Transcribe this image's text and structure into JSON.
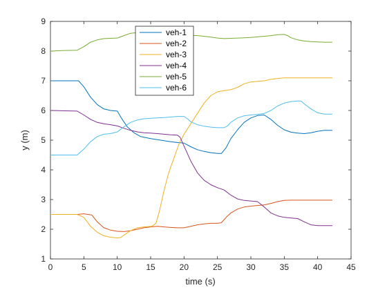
{
  "chart_data": {
    "type": "line",
    "xlabel": "time (s)",
    "ylabel": "y (m)",
    "xlim": [
      0,
      45
    ],
    "ylim": [
      1,
      9
    ],
    "xticks": [
      0,
      5,
      10,
      15,
      20,
      25,
      30,
      35,
      40,
      45
    ],
    "yticks": [
      1,
      2,
      3,
      4,
      5,
      6,
      7,
      8,
      9
    ],
    "grid": false,
    "legend_position": "top-center",
    "series": [
      {
        "name": "veh-1",
        "color": "#0072BD",
        "points": [
          [
            0,
            7.0
          ],
          [
            3.5,
            7.0
          ],
          [
            4.2,
            7.0
          ],
          [
            5,
            6.8
          ],
          [
            6,
            6.45
          ],
          [
            7,
            6.2
          ],
          [
            8,
            6.05
          ],
          [
            9,
            6.0
          ],
          [
            10,
            5.98
          ],
          [
            10.6,
            5.75
          ],
          [
            11.5,
            5.45
          ],
          [
            12.5,
            5.25
          ],
          [
            13.5,
            5.12
          ],
          [
            15,
            5.05
          ],
          [
            16.5,
            5.0
          ],
          [
            18,
            4.95
          ],
          [
            19,
            4.92
          ],
          [
            20,
            4.9
          ],
          [
            21,
            4.78
          ],
          [
            22,
            4.68
          ],
          [
            23,
            4.62
          ],
          [
            24,
            4.58
          ],
          [
            25,
            4.55
          ],
          [
            25.6,
            4.55
          ],
          [
            26.3,
            4.75
          ],
          [
            27,
            5.05
          ],
          [
            28,
            5.35
          ],
          [
            29,
            5.6
          ],
          [
            30,
            5.75
          ],
          [
            31,
            5.83
          ],
          [
            32,
            5.85
          ],
          [
            33,
            5.7
          ],
          [
            34,
            5.5
          ],
          [
            35,
            5.35
          ],
          [
            36,
            5.27
          ],
          [
            37,
            5.24
          ],
          [
            38,
            5.22
          ],
          [
            39,
            5.25
          ],
          [
            40,
            5.3
          ],
          [
            41,
            5.33
          ],
          [
            42.2,
            5.33
          ]
        ]
      },
      {
        "name": "veh-2",
        "color": "#D95319",
        "points": [
          [
            0,
            2.5
          ],
          [
            4,
            2.5
          ],
          [
            5,
            2.52
          ],
          [
            6.2,
            2.48
          ],
          [
            7,
            2.25
          ],
          [
            8,
            2.05
          ],
          [
            9,
            1.97
          ],
          [
            10,
            1.93
          ],
          [
            11,
            1.92
          ],
          [
            12,
            1.95
          ],
          [
            13,
            2.0
          ],
          [
            14,
            2.05
          ],
          [
            15,
            2.08
          ],
          [
            16,
            2.1
          ],
          [
            17,
            2.08
          ],
          [
            18,
            2.06
          ],
          [
            19,
            2.05
          ],
          [
            20,
            2.05
          ],
          [
            21,
            2.1
          ],
          [
            22,
            2.15
          ],
          [
            23,
            2.18
          ],
          [
            24,
            2.2
          ],
          [
            25,
            2.2
          ],
          [
            25.6,
            2.22
          ],
          [
            26.3,
            2.4
          ],
          [
            27,
            2.55
          ],
          [
            28,
            2.68
          ],
          [
            29,
            2.75
          ],
          [
            30,
            2.78
          ],
          [
            31,
            2.8
          ],
          [
            32,
            2.82
          ],
          [
            33,
            2.87
          ],
          [
            34,
            2.93
          ],
          [
            35,
            2.97
          ],
          [
            36,
            2.98
          ],
          [
            38,
            2.98
          ],
          [
            40,
            2.98
          ],
          [
            42.2,
            2.98
          ]
        ]
      },
      {
        "name": "veh-3",
        "color": "#EDB120",
        "points": [
          [
            0,
            2.5
          ],
          [
            4,
            2.5
          ],
          [
            5,
            2.4
          ],
          [
            6,
            2.1
          ],
          [
            7,
            1.9
          ],
          [
            8,
            1.78
          ],
          [
            9,
            1.73
          ],
          [
            10,
            1.71
          ],
          [
            10.5,
            1.72
          ],
          [
            11,
            1.8
          ],
          [
            12,
            1.95
          ],
          [
            13,
            2.05
          ],
          [
            14,
            2.08
          ],
          [
            15.2,
            2.1
          ],
          [
            15.8,
            2.2
          ],
          [
            16.3,
            2.6
          ],
          [
            17,
            3.3
          ],
          [
            17.7,
            3.9
          ],
          [
            18.5,
            4.4
          ],
          [
            19.2,
            4.85
          ],
          [
            20,
            5.2
          ],
          [
            21,
            5.55
          ],
          [
            22,
            5.9
          ],
          [
            23,
            6.25
          ],
          [
            24,
            6.5
          ],
          [
            25,
            6.63
          ],
          [
            26,
            6.67
          ],
          [
            27,
            6.7
          ],
          [
            28,
            6.78
          ],
          [
            29,
            6.9
          ],
          [
            30,
            6.96
          ],
          [
            31,
            6.98
          ],
          [
            32,
            7.0
          ],
          [
            33,
            7.05
          ],
          [
            34,
            7.08
          ],
          [
            35,
            7.1
          ],
          [
            37,
            7.1
          ],
          [
            40,
            7.1
          ],
          [
            42.2,
            7.1
          ]
        ]
      },
      {
        "name": "veh-4",
        "color": "#7E2F8E",
        "points": [
          [
            0,
            6.0
          ],
          [
            4,
            5.98
          ],
          [
            5,
            5.85
          ],
          [
            6,
            5.7
          ],
          [
            7,
            5.6
          ],
          [
            8,
            5.55
          ],
          [
            9,
            5.52
          ],
          [
            10,
            5.48
          ],
          [
            11,
            5.4
          ],
          [
            12,
            5.33
          ],
          [
            13,
            5.28
          ],
          [
            14,
            5.25
          ],
          [
            15,
            5.24
          ],
          [
            16,
            5.22
          ],
          [
            17,
            5.2
          ],
          [
            18,
            5.18
          ],
          [
            19,
            5.17
          ],
          [
            19.4,
            5.1
          ],
          [
            20,
            4.8
          ],
          [
            21,
            4.3
          ],
          [
            22,
            3.9
          ],
          [
            23,
            3.65
          ],
          [
            24,
            3.5
          ],
          [
            25,
            3.4
          ],
          [
            26,
            3.32
          ],
          [
            27,
            3.15
          ],
          [
            28,
            3.02
          ],
          [
            29,
            2.97
          ],
          [
            30,
            2.95
          ],
          [
            31,
            2.93
          ],
          [
            32,
            2.75
          ],
          [
            33,
            2.55
          ],
          [
            34,
            2.45
          ],
          [
            35,
            2.4
          ],
          [
            36,
            2.38
          ],
          [
            37,
            2.36
          ],
          [
            38,
            2.25
          ],
          [
            39,
            2.15
          ],
          [
            40,
            2.12
          ],
          [
            41,
            2.12
          ],
          [
            42.2,
            2.12
          ]
        ]
      },
      {
        "name": "veh-5",
        "color": "#77AC30",
        "points": [
          [
            0,
            8.0
          ],
          [
            2,
            8.02
          ],
          [
            4,
            8.03
          ],
          [
            5,
            8.15
          ],
          [
            6,
            8.3
          ],
          [
            7,
            8.38
          ],
          [
            8,
            8.42
          ],
          [
            9,
            8.43
          ],
          [
            10,
            8.44
          ],
          [
            11,
            8.52
          ],
          [
            12,
            8.6
          ],
          [
            13,
            8.62
          ],
          [
            14,
            8.61
          ],
          [
            15,
            8.6
          ],
          [
            16,
            8.58
          ],
          [
            17,
            8.57
          ],
          [
            18,
            8.56
          ],
          [
            19,
            8.55
          ],
          [
            20,
            8.55
          ],
          [
            21,
            8.53
          ],
          [
            22,
            8.52
          ],
          [
            23,
            8.5
          ],
          [
            24,
            8.47
          ],
          [
            25,
            8.44
          ],
          [
            26,
            8.42
          ],
          [
            27,
            8.43
          ],
          [
            28,
            8.44
          ],
          [
            29,
            8.45
          ],
          [
            30,
            8.46
          ],
          [
            31,
            8.48
          ],
          [
            32,
            8.5
          ],
          [
            33,
            8.52
          ],
          [
            34,
            8.55
          ],
          [
            35,
            8.56
          ],
          [
            35.5,
            8.52
          ],
          [
            36,
            8.45
          ],
          [
            37,
            8.38
          ],
          [
            38,
            8.34
          ],
          [
            39,
            8.32
          ],
          [
            40,
            8.31
          ],
          [
            41,
            8.3
          ],
          [
            42.2,
            8.3
          ]
        ]
      },
      {
        "name": "veh-6",
        "color": "#4DBEEE",
        "points": [
          [
            0,
            4.5
          ],
          [
            4,
            4.5
          ],
          [
            5,
            4.7
          ],
          [
            6,
            4.95
          ],
          [
            7,
            5.12
          ],
          [
            8,
            5.2
          ],
          [
            9,
            5.22
          ],
          [
            10,
            5.28
          ],
          [
            11,
            5.45
          ],
          [
            12,
            5.6
          ],
          [
            13,
            5.68
          ],
          [
            14,
            5.72
          ],
          [
            15,
            5.74
          ],
          [
            16,
            5.75
          ],
          [
            17,
            5.76
          ],
          [
            18,
            5.78
          ],
          [
            19,
            5.8
          ],
          [
            20,
            5.8
          ],
          [
            20.5,
            5.72
          ],
          [
            21,
            5.62
          ],
          [
            22,
            5.52
          ],
          [
            23,
            5.47
          ],
          [
            24,
            5.44
          ],
          [
            25,
            5.42
          ],
          [
            26,
            5.42
          ],
          [
            26.5,
            5.48
          ],
          [
            27,
            5.6
          ],
          [
            28,
            5.75
          ],
          [
            29,
            5.82
          ],
          [
            30,
            5.85
          ],
          [
            31,
            5.87
          ],
          [
            32,
            5.9
          ],
          [
            33,
            6.0
          ],
          [
            34,
            6.15
          ],
          [
            35,
            6.25
          ],
          [
            36,
            6.3
          ],
          [
            37,
            6.32
          ],
          [
            37.5,
            6.32
          ],
          [
            38,
            6.22
          ],
          [
            39,
            6.05
          ],
          [
            40,
            5.92
          ],
          [
            41,
            5.88
          ],
          [
            42.2,
            5.88
          ]
        ]
      }
    ]
  }
}
